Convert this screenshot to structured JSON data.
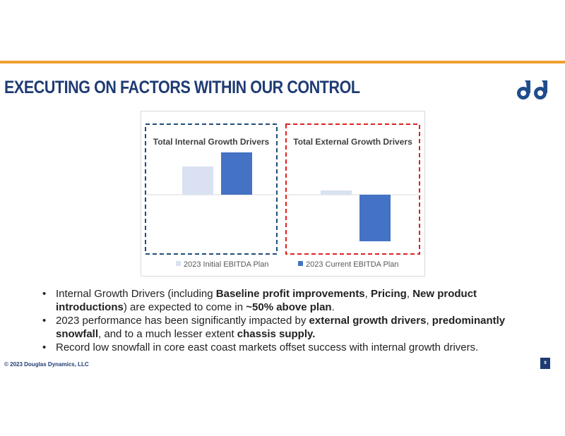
{
  "header": {
    "title": "EXECUTING ON FACTORS WITHIN OUR CONTROL",
    "accent_color": "#f0a030",
    "title_color": "#1f3b73",
    "logo_icon": "douglas-dynamics-logo"
  },
  "chart_data": {
    "type": "bar",
    "panels": [
      {
        "title": "Total Internal Growth Drivers",
        "border_color": "#1f4e79",
        "values": {
          "2023 Initial EBITDA Plan": 40,
          "2023 Current EBITDA Plan": 60
        }
      },
      {
        "title": "Total External Growth Drivers",
        "border_color": "#e02020",
        "values": {
          "2023 Initial EBITDA Plan": 6,
          "2023 Current EBITDA Plan": -66
        }
      }
    ],
    "series": [
      {
        "name": "2023 Initial EBITDA Plan",
        "color": "#d9e1f2"
      },
      {
        "name": "2023 Current EBITDA Plan",
        "color": "#4472c4"
      }
    ],
    "ylim": [
      -80,
      80
    ],
    "units": "illustrative (no axis values shown)",
    "legend_position": "bottom"
  },
  "bullets": [
    [
      {
        "t": "Internal Growth Drivers (including ",
        "b": false
      },
      {
        "t": "Baseline profit improvements",
        "b": true
      },
      {
        "t": ", ",
        "b": false
      },
      {
        "t": "Pricing",
        "b": true
      },
      {
        "t": ", ",
        "b": false
      },
      {
        "t": "New product introductions",
        "b": true
      },
      {
        "t": ") are expected to come in ",
        "b": false
      },
      {
        "t": "~50% above plan",
        "b": true
      },
      {
        "t": ".",
        "b": false
      }
    ],
    [
      {
        "t": "2023 performance has been significantly impacted by ",
        "b": false
      },
      {
        "t": "external growth drivers",
        "b": true
      },
      {
        "t": ", ",
        "b": false
      },
      {
        "t": "predominantly snowfall",
        "b": true
      },
      {
        "t": ", and to a much lesser extent ",
        "b": false
      },
      {
        "t": "chassis supply.",
        "b": true
      }
    ],
    [
      {
        "t": "Record low snowfall in core east coast markets offset success with internal growth drivers.",
        "b": false
      }
    ]
  ],
  "footer": {
    "copyright": "© 2023 Douglas Dynamics, LLC",
    "page_number": "9"
  }
}
